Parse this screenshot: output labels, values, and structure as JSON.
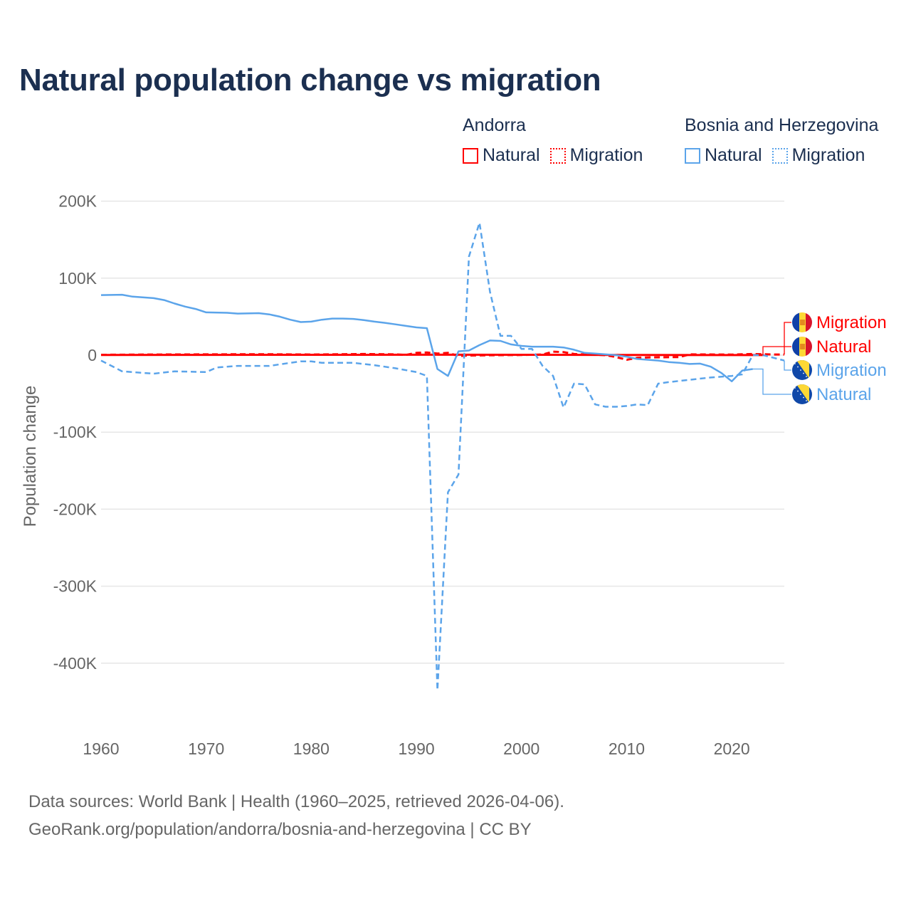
{
  "title": "Natural population change vs migration",
  "legend": {
    "groups": [
      {
        "name": "Andorra",
        "color": "#ff0000",
        "items": [
          "Natural",
          "Migration"
        ]
      },
      {
        "name": "Bosnia and Herzegovina",
        "color": "#5ba4ea",
        "items": [
          "Natural",
          "Migration"
        ]
      }
    ]
  },
  "footer": {
    "line1": "Data sources: World Bank | Health (1960–2025, retrieved 2026-04-06).",
    "line2": "GeoRank.org/population/andorra/bosnia-and-herzegovina | CC BY"
  },
  "chart_data": {
    "type": "line",
    "title": "Natural population change vs migration",
    "xlabel": "",
    "ylabel": "Population change",
    "xlim": [
      1960,
      2025
    ],
    "ylim": [
      -450000,
      220000
    ],
    "x_ticks": [
      1960,
      1970,
      1980,
      1990,
      2000,
      2010,
      2020
    ],
    "y_ticks": [
      {
        "value": 200000,
        "label": "200K"
      },
      {
        "value": 100000,
        "label": "100K"
      },
      {
        "value": 0,
        "label": "0"
      },
      {
        "value": -100000,
        "label": "-100K"
      },
      {
        "value": -200000,
        "label": "-200K"
      },
      {
        "value": -300000,
        "label": "-300K"
      },
      {
        "value": -400000,
        "label": "-400K"
      }
    ],
    "grid": true,
    "series": [
      {
        "name": "Andorra Migration",
        "country": "Andorra",
        "kind": "Migration",
        "label": "Migration",
        "color": "#ff0000",
        "dash": true,
        "points": [
          [
            1960,
            500
          ],
          [
            1965,
            800
          ],
          [
            1970,
            1000
          ],
          [
            1975,
            1200
          ],
          [
            1980,
            800
          ],
          [
            1985,
            1500
          ],
          [
            1988,
            1000
          ],
          [
            1989,
            300
          ],
          [
            1990,
            3000
          ],
          [
            1991,
            3500
          ],
          [
            1992,
            2000
          ],
          [
            1993,
            3000
          ],
          [
            1994,
            -1000
          ],
          [
            1995,
            -500
          ],
          [
            1998,
            0
          ],
          [
            2000,
            200
          ],
          [
            2002,
            800
          ],
          [
            2003,
            4500
          ],
          [
            2004,
            4000
          ],
          [
            2005,
            1500
          ],
          [
            2008,
            0
          ],
          [
            2009,
            -2500
          ],
          [
            2010,
            -6000
          ],
          [
            2011,
            -3500
          ],
          [
            2012,
            -3000
          ],
          [
            2015,
            -2500
          ],
          [
            2016,
            1000
          ],
          [
            2020,
            700
          ],
          [
            2022,
            1500
          ],
          [
            2024,
            800
          ],
          [
            2025,
            800
          ]
        ]
      },
      {
        "name": "Andorra Natural",
        "country": "Andorra",
        "kind": "Natural",
        "label": "Natural",
        "color": "#ff0000",
        "dash": false,
        "points": [
          [
            1960,
            300
          ],
          [
            1970,
            400
          ],
          [
            1980,
            500
          ],
          [
            1990,
            600
          ],
          [
            2000,
            500
          ],
          [
            2010,
            300
          ],
          [
            2020,
            100
          ],
          [
            2023,
            100
          ]
        ]
      },
      {
        "name": "Bosnia and Herzegovina Migration",
        "country": "Bosnia and Herzegovina",
        "kind": "Migration",
        "label": "Migration",
        "color": "#5ba4ea",
        "dash": true,
        "points": [
          [
            1960,
            -7000
          ],
          [
            1962,
            -21000
          ],
          [
            1965,
            -24000
          ],
          [
            1967,
            -21000
          ],
          [
            1970,
            -22000
          ],
          [
            1971,
            -16000
          ],
          [
            1973,
            -14000
          ],
          [
            1976,
            -14000
          ],
          [
            1978,
            -10000
          ],
          [
            1979,
            -8000
          ],
          [
            1980,
            -8000
          ],
          [
            1981,
            -10000
          ],
          [
            1984,
            -10000
          ],
          [
            1986,
            -13000
          ],
          [
            1988,
            -17000
          ],
          [
            1990,
            -22000
          ],
          [
            1991,
            -27000
          ],
          [
            1992,
            -435000
          ],
          [
            1993,
            -178000
          ],
          [
            1994,
            -155000
          ],
          [
            1995,
            128000
          ],
          [
            1996,
            172000
          ],
          [
            1997,
            82000
          ],
          [
            1998,
            25000
          ],
          [
            1999,
            25000
          ],
          [
            2000,
            8000
          ],
          [
            2001,
            8000
          ],
          [
            2002,
            -14000
          ],
          [
            2003,
            -27000
          ],
          [
            2004,
            -68000
          ],
          [
            2005,
            -37000
          ],
          [
            2006,
            -38000
          ],
          [
            2007,
            -64000
          ],
          [
            2008,
            -67000
          ],
          [
            2009,
            -67000
          ],
          [
            2010,
            -66000
          ],
          [
            2011,
            -64000
          ],
          [
            2012,
            -65000
          ],
          [
            2013,
            -37000
          ],
          [
            2014,
            -35000
          ],
          [
            2016,
            -32000
          ],
          [
            2018,
            -29000
          ],
          [
            2020,
            -27000
          ],
          [
            2021,
            -25000
          ],
          [
            2022,
            0
          ],
          [
            2023,
            0
          ],
          [
            2025,
            -7000
          ]
        ]
      },
      {
        "name": "Bosnia and Herzegovina Natural",
        "country": "Bosnia and Herzegovina",
        "kind": "Natural",
        "label": "Natural",
        "color": "#5ba4ea",
        "dash": false,
        "points": [
          [
            1960,
            78000
          ],
          [
            1962,
            78500
          ],
          [
            1963,
            76000
          ],
          [
            1965,
            74000
          ],
          [
            1966,
            71500
          ],
          [
            1967,
            67000
          ],
          [
            1968,
            63000
          ],
          [
            1969,
            60000
          ],
          [
            1970,
            55500
          ],
          [
            1972,
            55000
          ],
          [
            1973,
            54000
          ],
          [
            1975,
            54500
          ],
          [
            1976,
            53000
          ],
          [
            1977,
            50000
          ],
          [
            1978,
            46000
          ],
          [
            1979,
            43000
          ],
          [
            1980,
            43500
          ],
          [
            1981,
            46000
          ],
          [
            1982,
            47500
          ],
          [
            1983,
            47500
          ],
          [
            1984,
            47000
          ],
          [
            1985,
            45500
          ],
          [
            1986,
            43500
          ],
          [
            1987,
            42000
          ],
          [
            1988,
            40000
          ],
          [
            1989,
            38000
          ],
          [
            1990,
            36000
          ],
          [
            1991,
            35000
          ],
          [
            1992,
            -18000
          ],
          [
            1993,
            -27000
          ],
          [
            1994,
            5000
          ],
          [
            1995,
            6000
          ],
          [
            1996,
            13000
          ],
          [
            1997,
            19000
          ],
          [
            1998,
            18500
          ],
          [
            1999,
            14000
          ],
          [
            2000,
            12000
          ],
          [
            2001,
            11000
          ],
          [
            2003,
            11000
          ],
          [
            2004,
            10000
          ],
          [
            2005,
            7000
          ],
          [
            2006,
            3000
          ],
          [
            2007,
            2000
          ],
          [
            2008,
            1000
          ],
          [
            2009,
            0
          ],
          [
            2010,
            -2000
          ],
          [
            2011,
            -5000
          ],
          [
            2012,
            -6000
          ],
          [
            2013,
            -7000
          ],
          [
            2014,
            -9000
          ],
          [
            2015,
            -10000
          ],
          [
            2016,
            -11500
          ],
          [
            2017,
            -11000
          ],
          [
            2018,
            -15000
          ],
          [
            2019,
            -23000
          ],
          [
            2020,
            -34000
          ],
          [
            2021,
            -20000
          ],
          [
            2022,
            -18000
          ]
        ]
      }
    ]
  }
}
